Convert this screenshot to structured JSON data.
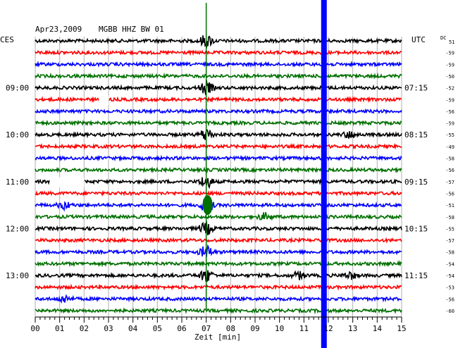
{
  "header": {
    "date": "Apr23,2009",
    "station": "MGBB HHZ BW 01",
    "left_zone": "CES",
    "right_zone": "UTC",
    "dc_label": "DC",
    "dc_first": "51"
  },
  "chart_data": {
    "type": "line",
    "xlabel": "Zeit [min]",
    "xlim": [
      0,
      15
    ],
    "x_ticks": [
      "00",
      "01",
      "02",
      "03",
      "04",
      "05",
      "06",
      "07",
      "08",
      "09",
      "10",
      "11",
      "12",
      "13",
      "14",
      "15"
    ],
    "trace_colors": [
      "#000000",
      "#ff0000",
      "#0000ff",
      "#007000"
    ],
    "trace_count": 24,
    "left_time_labels": [
      {
        "row": 4,
        "text": "09:00"
      },
      {
        "row": 8,
        "text": "10:00"
      },
      {
        "row": 12,
        "text": "11:00"
      },
      {
        "row": 16,
        "text": "12:00"
      },
      {
        "row": 20,
        "text": "13:00"
      }
    ],
    "right_time_labels": [
      {
        "row": 4,
        "text": "07:15"
      },
      {
        "row": 8,
        "text": "08:15"
      },
      {
        "row": 12,
        "text": "09:15"
      },
      {
        "row": 16,
        "text": "10:15"
      },
      {
        "row": 20,
        "text": "11:15"
      }
    ],
    "dc_offsets": [
      null,
      -59,
      -59,
      -50,
      -52,
      -59,
      -56,
      -59,
      -55,
      -49,
      -58,
      -56,
      -57,
      -56,
      -51,
      -58,
      -55,
      -57,
      -58,
      -54,
      -54,
      -53,
      -56,
      -60
    ],
    "marker_line": {
      "x_min": 11.82,
      "color": "#0000ff"
    },
    "gaps": [
      {
        "row": 5,
        "x_start": 2.6,
        "x_end": 3.0
      },
      {
        "row": 12,
        "x_start": 0.6,
        "x_end": 2.0
      }
    ],
    "events": [
      {
        "x_min": 7.0,
        "rows": [
          0,
          4,
          8,
          12,
          14,
          16,
          18,
          20
        ],
        "note": "large spike"
      },
      {
        "x_min": 10.8,
        "rows": [
          20
        ],
        "note": "burst"
      },
      {
        "x_min": 12.9,
        "rows": [
          8,
          20
        ],
        "note": "burst"
      },
      {
        "x_min": 9.4,
        "rows": [
          15
        ],
        "note": "burst"
      },
      {
        "x_min": 1.2,
        "rows": [
          14,
          22
        ],
        "note": "burst"
      }
    ]
  }
}
